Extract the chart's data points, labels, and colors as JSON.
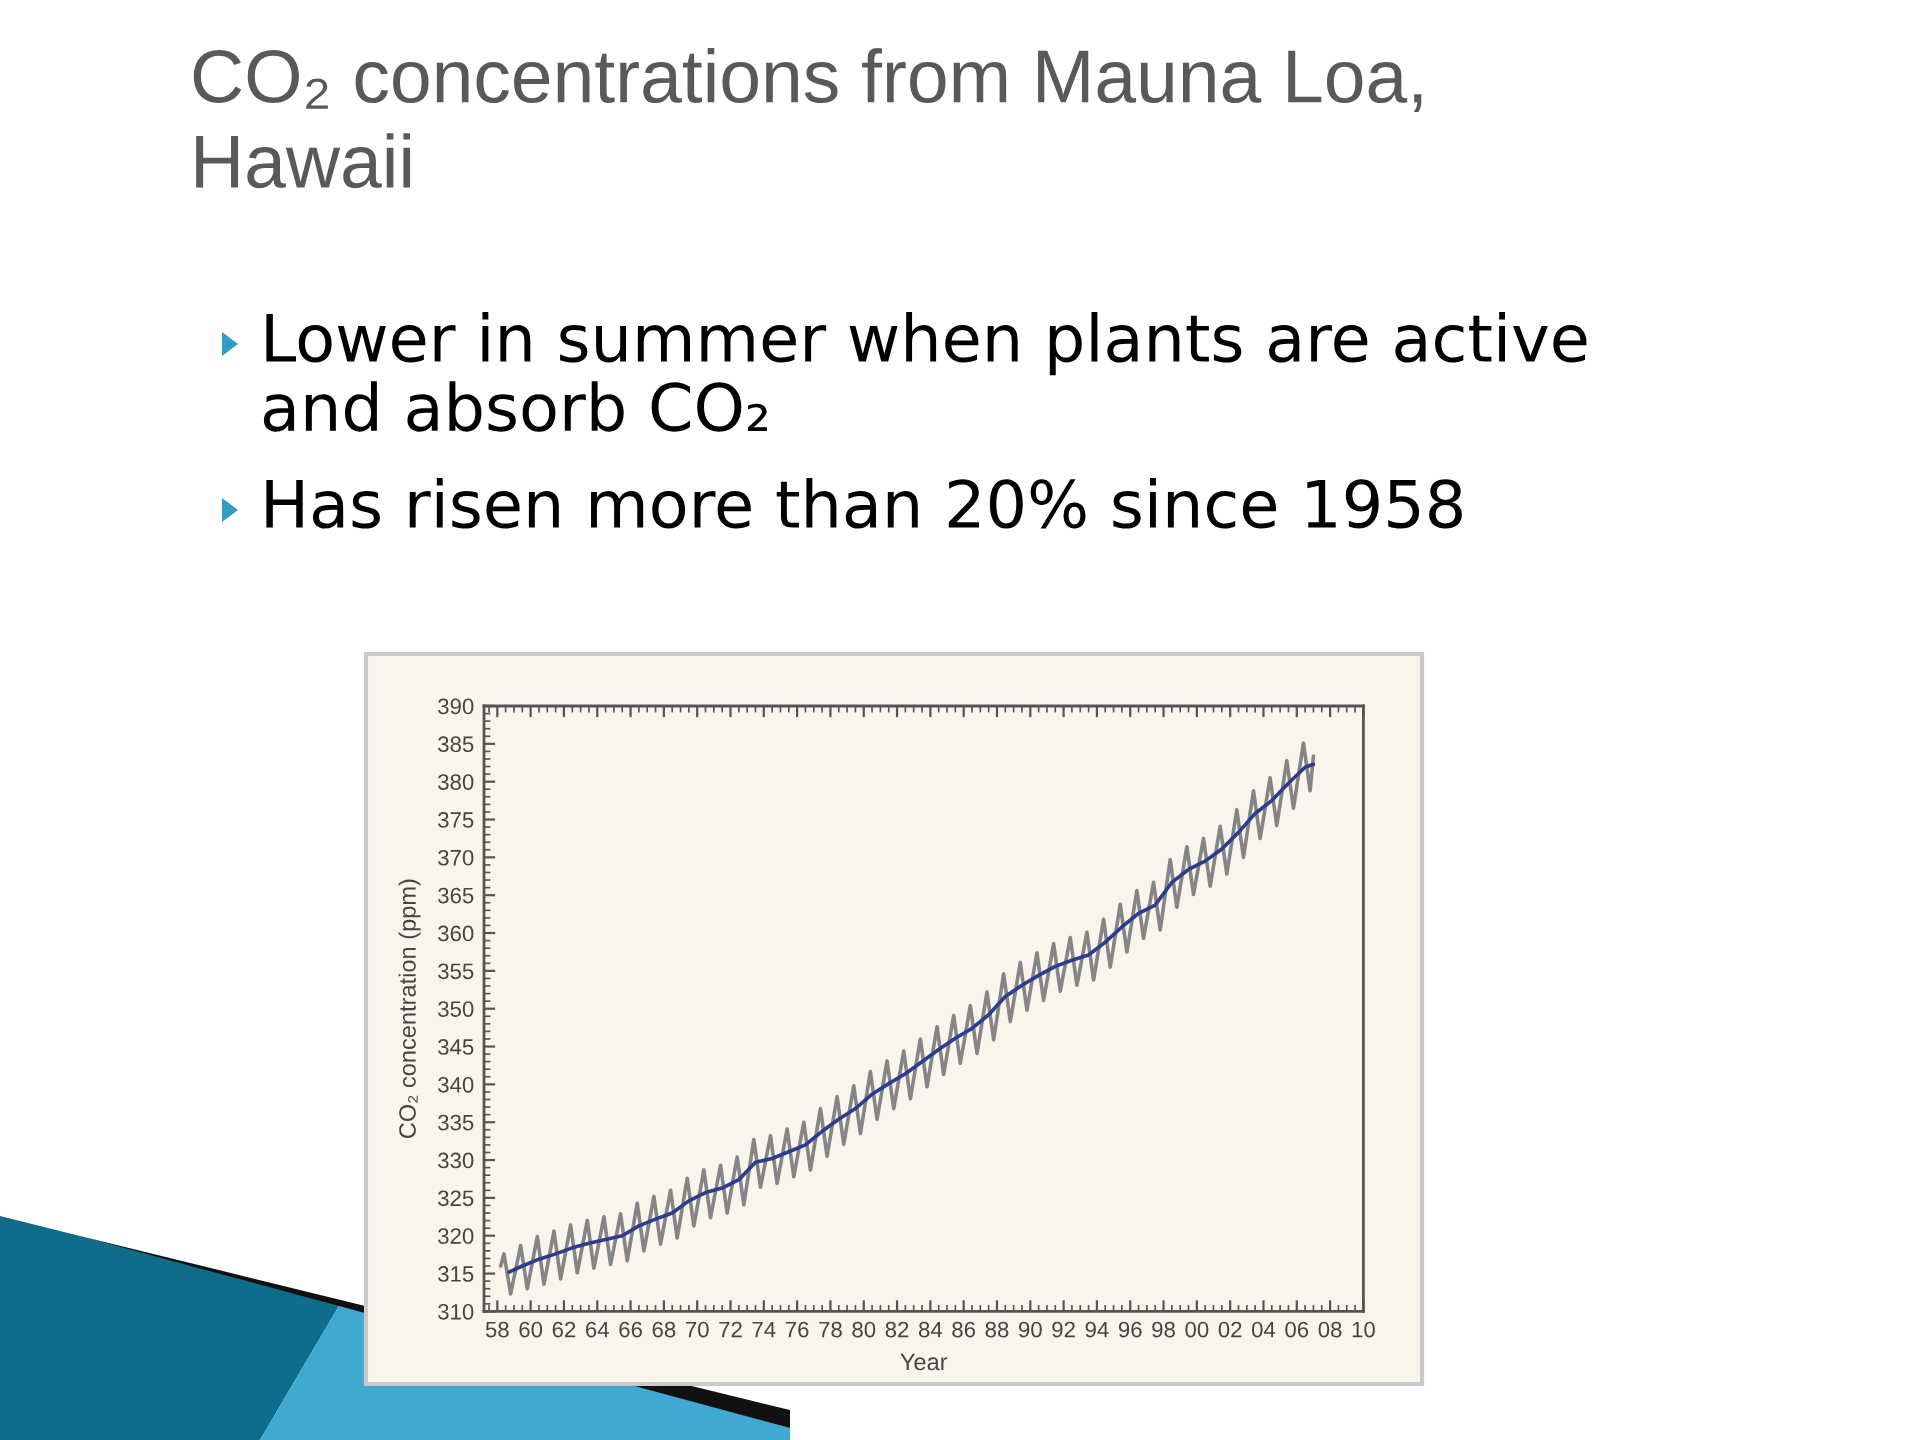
{
  "chart_data": {
    "type": "line",
    "title": "CO₂ concentrations from Mauna Loa, Hawaii",
    "annotations": [
      "Lower in summer when plants are active and absorb CO₂",
      "Has risen more than 20% since 1958"
    ],
    "xlabel": "Year",
    "ylabel": "CO₂ concentration (ppm)",
    "xlim": [
      1957.2,
      2010
    ],
    "xticks": [
      {
        "value": 1958,
        "label": "58"
      },
      {
        "value": 1960,
        "label": "60"
      },
      {
        "value": 1962,
        "label": "62"
      },
      {
        "value": 1964,
        "label": "64"
      },
      {
        "value": 1966,
        "label": "66"
      },
      {
        "value": 1968,
        "label": "68"
      },
      {
        "value": 1970,
        "label": "70"
      },
      {
        "value": 1972,
        "label": "72"
      },
      {
        "value": 1974,
        "label": "74"
      },
      {
        "value": 1976,
        "label": "76"
      },
      {
        "value": 1978,
        "label": "78"
      },
      {
        "value": 1980,
        "label": "80"
      },
      {
        "value": 1982,
        "label": "82"
      },
      {
        "value": 1984,
        "label": "84"
      },
      {
        "value": 1986,
        "label": "86"
      },
      {
        "value": 1988,
        "label": "88"
      },
      {
        "value": 1990,
        "label": "90"
      },
      {
        "value": 1992,
        "label": "92"
      },
      {
        "value": 1994,
        "label": "94"
      },
      {
        "value": 1996,
        "label": "96"
      },
      {
        "value": 1998,
        "label": "98"
      },
      {
        "value": 2000,
        "label": "00"
      },
      {
        "value": 2002,
        "label": "02"
      },
      {
        "value": 2004,
        "label": "04"
      },
      {
        "value": 2006,
        "label": "06"
      },
      {
        "value": 2008,
        "label": "08"
      },
      {
        "value": 2010,
        "label": "10"
      },
      {
        "value": 1957.5,
        "label": null
      },
      {
        "value": 1958.5,
        "label": null
      },
      {
        "value": 1959,
        "label": null
      },
      {
        "value": 1959.5,
        "label": null
      },
      {
        "value": 1960.5,
        "label": null
      },
      {
        "value": 1961,
        "label": null
      },
      {
        "value": 1961.5,
        "label": null
      },
      {
        "value": 1962.5,
        "label": null
      },
      {
        "value": 1963,
        "label": null
      },
      {
        "value": 1963.5,
        "label": null
      },
      {
        "value": 1964.5,
        "label": null
      },
      {
        "value": 1965,
        "label": null
      },
      {
        "value": 1965.5,
        "label": null
      },
      {
        "value": 1966.5,
        "label": null
      },
      {
        "value": 1967,
        "label": null
      },
      {
        "value": 1967.5,
        "label": null
      },
      {
        "value": 1968.5,
        "label": null
      },
      {
        "value": 1969,
        "label": null
      },
      {
        "value": 1969.5,
        "label": null
      },
      {
        "value": 1970.5,
        "label": null
      },
      {
        "value": 1971,
        "label": null
      },
      {
        "value": 1971.5,
        "label": null
      },
      {
        "value": 1972.5,
        "label": null
      },
      {
        "value": 1973,
        "label": null
      },
      {
        "value": 1973.5,
        "label": null
      },
      {
        "value": 1974.5,
        "label": null
      },
      {
        "value": 1975,
        "label": null
      },
      {
        "value": 1975.5,
        "label": null
      },
      {
        "value": 1976.5,
        "label": null
      },
      {
        "value": 1977,
        "label": null
      },
      {
        "value": 1977.5,
        "label": null
      },
      {
        "value": 1978.5,
        "label": null
      },
      {
        "value": 1979,
        "label": null
      },
      {
        "value": 1979.5,
        "label": null
      },
      {
        "value": 1980.5,
        "label": null
      },
      {
        "value": 1981,
        "label": null
      },
      {
        "value": 1981.5,
        "label": null
      },
      {
        "value": 1982.5,
        "label": null
      },
      {
        "value": 1983,
        "label": null
      },
      {
        "value": 1983.5,
        "label": null
      },
      {
        "value": 1984.5,
        "label": null
      },
      {
        "value": 1985,
        "label": null
      },
      {
        "value": 1985.5,
        "label": null
      },
      {
        "value": 1986.5,
        "label": null
      },
      {
        "value": 1987,
        "label": null
      },
      {
        "value": 1987.5,
        "label": null
      },
      {
        "value": 1988.5,
        "label": null
      },
      {
        "value": 1989,
        "label": null
      },
      {
        "value": 1989.5,
        "label": null
      },
      {
        "value": 1990.5,
        "label": null
      },
      {
        "value": 1991,
        "label": null
      },
      {
        "value": 1991.5,
        "label": null
      },
      {
        "value": 1992.5,
        "label": null
      },
      {
        "value": 1993,
        "label": null
      },
      {
        "value": 1993.5,
        "label": null
      },
      {
        "value": 1994.5,
        "label": null
      },
      {
        "value": 1995,
        "label": null
      },
      {
        "value": 1995.5,
        "label": null
      },
      {
        "value": 1996.5,
        "label": null
      },
      {
        "value": 1997,
        "label": null
      },
      {
        "value": 1997.5,
        "label": null
      },
      {
        "value": 1998.5,
        "label": null
      },
      {
        "value": 1999,
        "label": null
      },
      {
        "value": 1999.5,
        "label": null
      },
      {
        "value": 2000.5,
        "label": null
      },
      {
        "value": 2001,
        "label": null
      },
      {
        "value": 2001.5,
        "label": null
      },
      {
        "value": 2002.5,
        "label": null
      },
      {
        "value": 2003,
        "label": null
      },
      {
        "value": 2003.5,
        "label": null
      },
      {
        "value": 2004.5,
        "label": null
      },
      {
        "value": 2005,
        "label": null
      },
      {
        "value": 2005.5,
        "label": null
      },
      {
        "value": 2006.5,
        "label": null
      },
      {
        "value": 2007,
        "label": null
      },
      {
        "value": 2007.5,
        "label": null
      },
      {
        "value": 2008.5,
        "label": null
      },
      {
        "value": 2009,
        "label": null
      },
      {
        "value": 2009.5,
        "label": null
      }
    ],
    "ylim": [
      310,
      390
    ],
    "yticks": [
      310,
      315,
      320,
      325,
      330,
      335,
      340,
      345,
      350,
      355,
      360,
      365,
      370,
      375,
      380,
      385,
      390,
      {
        "value": 311,
        "label": null
      },
      {
        "value": 312,
        "label": null
      },
      {
        "value": 313,
        "label": null
      },
      {
        "value": 314,
        "label": null
      },
      {
        "value": 316,
        "label": null
      },
      {
        "value": 317,
        "label": null
      },
      {
        "value": 318,
        "label": null
      },
      {
        "value": 319,
        "label": null
      },
      {
        "value": 321,
        "label": null
      },
      {
        "value": 322,
        "label": null
      },
      {
        "value": 323,
        "label": null
      },
      {
        "value": 324,
        "label": null
      },
      {
        "value": 326,
        "label": null
      },
      {
        "value": 327,
        "label": null
      },
      {
        "value": 328,
        "label": null
      },
      {
        "value": 329,
        "label": null
      },
      {
        "value": 331,
        "label": null
      },
      {
        "value": 332,
        "label": null
      },
      {
        "value": 333,
        "label": null
      },
      {
        "value": 334,
        "label": null
      },
      {
        "value": 336,
        "label": null
      },
      {
        "value": 337,
        "label": null
      },
      {
        "value": 338,
        "label": null
      },
      {
        "value": 339,
        "label": null
      },
      {
        "value": 341,
        "label": null
      },
      {
        "value": 342,
        "label": null
      },
      {
        "value": 343,
        "label": null
      },
      {
        "value": 344,
        "label": null
      },
      {
        "value": 346,
        "label": null
      },
      {
        "value": 347,
        "label": null
      },
      {
        "value": 348,
        "label": null
      },
      {
        "value": 349,
        "label": null
      },
      {
        "value": 351,
        "label": null
      },
      {
        "value": 352,
        "label": null
      },
      {
        "value": 353,
        "label": null
      },
      {
        "value": 354,
        "label": null
      },
      {
        "value": 356,
        "label": null
      },
      {
        "value": 357,
        "label": null
      },
      {
        "value": 358,
        "label": null
      },
      {
        "value": 359,
        "label": null
      },
      {
        "value": 361,
        "label": null
      },
      {
        "value": 362,
        "label": null
      },
      {
        "value": 363,
        "label": null
      },
      {
        "value": 364,
        "label": null
      },
      {
        "value": 366,
        "label": null
      },
      {
        "value": 367,
        "label": null
      },
      {
        "value": 368,
        "label": null
      },
      {
        "value": 369,
        "label": null
      },
      {
        "value": 371,
        "label": null
      },
      {
        "value": 372,
        "label": null
      },
      {
        "value": 373,
        "label": null
      },
      {
        "value": 374,
        "label": null
      },
      {
        "value": 376,
        "label": null
      },
      {
        "value": 377,
        "label": null
      },
      {
        "value": 378,
        "label": null
      },
      {
        "value": 379,
        "label": null
      },
      {
        "value": 381,
        "label": null
      },
      {
        "value": 382,
        "label": null
      },
      {
        "value": 383,
        "label": null
      },
      {
        "value": 384,
        "label": null
      },
      {
        "value": 386,
        "label": null
      },
      {
        "value": 387,
        "label": null
      },
      {
        "value": 388,
        "label": null
      },
      {
        "value": 389,
        "label": null
      }
    ],
    "series": [
      {
        "color": "#858585",
        "x": [
          1958.2,
          1958.4,
          1958.8,
          1959.4,
          1959.8,
          1960.4,
          1960.8,
          1961.4,
          1961.8,
          1962.4,
          1962.8,
          1963.4,
          1963.8,
          1964.4,
          1964.8,
          1965.4,
          1965.8,
          1966.4,
          1966.8,
          1967.4,
          1967.8,
          1968.4,
          1968.8,
          1969.4,
          1969.8,
          1970.4,
          1970.8,
          1971.4,
          1971.8,
          1972.4,
          1972.8,
          1973.4,
          1973.8,
          1974.4,
          1974.8,
          1975.4,
          1975.8,
          1976.4,
          1976.8,
          1977.4,
          1977.8,
          1978.4,
          1978.8,
          1979.4,
          1979.8,
          1980.4,
          1980.8,
          1981.4,
          1981.8,
          1982.4,
          1982.8,
          1983.4,
          1983.8,
          1984.4,
          1984.8,
          1985.4,
          1985.8,
          1986.4,
          1986.8,
          1987.4,
          1987.8,
          1988.4,
          1988.8,
          1989.4,
          1989.8,
          1990.4,
          1990.8,
          1991.4,
          1991.8,
          1992.4,
          1992.8,
          1993.4,
          1993.8,
          1994.4,
          1994.8,
          1995.4,
          1995.8,
          1996.4,
          1996.8,
          1997.4,
          1997.8,
          1998.4,
          1998.8,
          1999.4,
          1999.8,
          2000.4,
          2000.8,
          2001.4,
          2001.8,
          2002.4,
          2002.8,
          2003.4,
          2003.8,
          2004.4,
          2004.8,
          2005.4,
          2005.8,
          2006.4,
          2006.8,
          2007.0
        ],
        "values": [
          316.0,
          317.6,
          312.3,
          318.7,
          313.0,
          319.9,
          313.6,
          320.6,
          314.3,
          321.4,
          315.1,
          322.0,
          315.7,
          322.5,
          316.2,
          322.9,
          316.7,
          324.3,
          318.0,
          325.2,
          318.9,
          326.0,
          319.7,
          327.6,
          321.3,
          328.7,
          322.4,
          329.3,
          323.0,
          330.4,
          324.1,
          332.7,
          326.4,
          333.2,
          326.9,
          334.1,
          327.8,
          335.0,
          328.7,
          336.8,
          330.5,
          338.4,
          332.1,
          339.8,
          333.5,
          341.7,
          335.4,
          343.1,
          336.8,
          344.4,
          338.1,
          346.0,
          339.7,
          347.6,
          341.3,
          349.1,
          342.8,
          350.4,
          344.1,
          352.2,
          345.9,
          354.6,
          348.3,
          356.1,
          349.8,
          357.4,
          351.1,
          358.6,
          352.3,
          359.4,
          353.1,
          360.1,
          353.8,
          361.8,
          355.5,
          363.8,
          357.5,
          365.6,
          359.3,
          366.7,
          360.4,
          369.7,
          363.4,
          371.4,
          365.1,
          372.5,
          366.2,
          374.1,
          367.8,
          376.3,
          370.0,
          378.8,
          372.5,
          380.5,
          374.2,
          382.8,
          376.5,
          385.1,
          378.8,
          383.4
        ]
      },
      {
        "color": "#2e3c8c",
        "x": [
          1958.7,
          1959.5,
          1960.5,
          1961.5,
          1962.5,
          1963.5,
          1964.5,
          1965.5,
          1966.5,
          1967.5,
          1968.5,
          1969.5,
          1970.5,
          1971.5,
          1972.5,
          1973.5,
          1974.5,
          1975.5,
          1976.5,
          1977.5,
          1978.5,
          1979.5,
          1980.5,
          1981.5,
          1982.5,
          1983.5,
          1984.5,
          1985.5,
          1986.5,
          1987.5,
          1988.5,
          1989.5,
          1990.5,
          1991.5,
          1992.5,
          1993.5,
          1994.5,
          1995.5,
          1996.5,
          1997.5,
          1998.5,
          1999.5,
          2000.5,
          2001.5,
          2002.5,
          2003.5,
          2004.5,
          2005.5,
          2006.5,
          2007.0
        ],
        "values": [
          315.2,
          316.0,
          316.9,
          317.6,
          318.4,
          319.0,
          319.5,
          320.0,
          321.3,
          322.2,
          323.0,
          324.6,
          325.7,
          326.3,
          327.4,
          329.7,
          330.2,
          331.1,
          332.0,
          333.8,
          335.4,
          336.8,
          338.7,
          340.1,
          341.4,
          343.0,
          344.6,
          346.1,
          347.4,
          349.2,
          351.6,
          353.1,
          354.4,
          355.6,
          356.4,
          357.1,
          358.8,
          360.8,
          362.6,
          363.7,
          366.7,
          368.4,
          369.5,
          371.1,
          373.3,
          375.8,
          377.5,
          379.8,
          381.9,
          382.3
        ]
      }
    ]
  }
}
